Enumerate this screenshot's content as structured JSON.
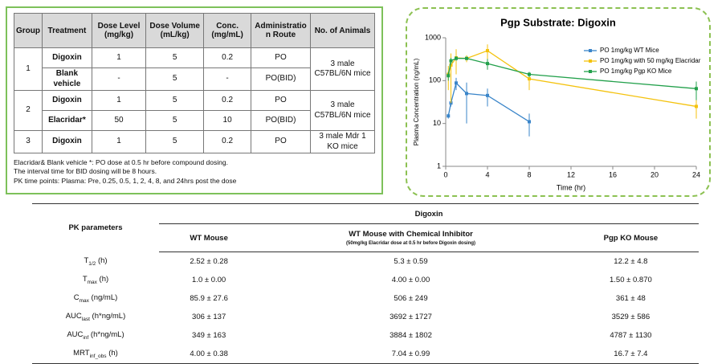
{
  "study_table": {
    "columns": [
      "Group",
      "Treatment",
      "Dose Level (mg/kg)",
      "Dose Volume (mL/kg)",
      "Conc. (mg/mL)",
      "Administration Route",
      "No. of Animals"
    ],
    "groups": [
      {
        "group": "1",
        "animals": "3 male C57BL/6N mice",
        "rows": [
          [
            "Digoxin",
            "1",
            "5",
            "0.2",
            "PO"
          ],
          [
            "Blank vehicle",
            "-",
            "5",
            "-",
            "PO(BID)"
          ]
        ]
      },
      {
        "group": "2",
        "animals": "3 male C57BL/6N mice",
        "rows": [
          [
            "Digoxin",
            "1",
            "5",
            "0.2",
            "PO"
          ],
          [
            "Elacridar*",
            "50",
            "5",
            "10",
            "PO(BID)"
          ]
        ]
      },
      {
        "group": "3",
        "animals": "3 male Mdr 1 KO mice",
        "rows": [
          [
            "Digoxin",
            "1",
            "5",
            "0.2",
            "PO"
          ]
        ]
      }
    ],
    "notes": [
      "Elacridar& Blank vehicle *: PO dose at 0.5 hr before compound dosing.",
      "The interval time for BID dosing will be 8 hours.",
      "PK time points: Plasma: Pre, 0.25, 0.5, 1, 2, 4, 8, and 24hrs post the dose"
    ]
  },
  "chart_data": {
    "type": "line",
    "title": "Pgp Substrate: Digoxin",
    "x_label": "Time (hr)",
    "y_label": "Plasma Concentration (ng/mL)",
    "log_y": true,
    "x": [
      0.25,
      0.5,
      1,
      2,
      4,
      8,
      24
    ],
    "xlim": [
      0,
      24
    ],
    "xticks": [
      0,
      4,
      8,
      12,
      16,
      20,
      24
    ],
    "ylim": [
      1,
      1000
    ],
    "yticks": [
      1,
      10,
      100,
      1000
    ],
    "legend": "upper right",
    "series": [
      {
        "name": "PO 1mg/kg WT Mice",
        "color": "#3a85c9",
        "values": [
          15,
          30,
          88,
          50,
          45,
          11,
          null
        ],
        "errors": [
          2,
          5,
          28,
          40,
          20,
          6,
          null
        ]
      },
      {
        "name": "PO 1mg/kg with 50 mg/kg Elacridar",
        "color": "#f4c20d",
        "values": [
          140,
          230,
          340,
          330,
          500,
          110,
          25
        ],
        "errors": [
          80,
          200,
          200,
          60,
          200,
          50,
          12
        ]
      },
      {
        "name": "PO 1mg/kg Pgp KO Mice",
        "color": "#22a04b",
        "values": [
          130,
          290,
          330,
          330,
          250,
          140,
          65
        ],
        "errors": [
          30,
          50,
          40,
          30,
          70,
          20,
          30
        ]
      }
    ]
  },
  "pk_table": {
    "row_header": "PK parameters",
    "group_header": "Digoxin",
    "columns": [
      {
        "title": "WT Mouse"
      },
      {
        "title": "WT Mouse with Chemical Inhibitor",
        "note": "(50mg/kg Elacridar dose at 0.5 hr before Digoxin dosing)"
      },
      {
        "title": "Pgp KO Mouse"
      }
    ],
    "rows": [
      {
        "base": "T",
        "sub": "1/2",
        "unit": "(h)",
        "values": [
          "2.52 ± 0.28",
          "5.3 ± 0.59",
          "12.2 ± 4.8"
        ]
      },
      {
        "base": "T",
        "sub": "max",
        "unit": "(h)",
        "values": [
          "1.0 ± 0.00",
          "4.00 ± 0.00",
          "1.50 ± 0.870"
        ]
      },
      {
        "base": "C",
        "sub": "max",
        "unit": "(ng/mL)",
        "values": [
          "85.9 ± 27.6",
          "506 ± 249",
          "361 ± 48"
        ]
      },
      {
        "base": "AUC",
        "sub": "last",
        "unit": "(h*ng/mL)",
        "values": [
          "306 ± 137",
          "3692 ± 1727",
          "3529 ± 586"
        ]
      },
      {
        "base": "AUC",
        "sub": "inf",
        "unit": "(h*ng/mL)",
        "values": [
          "349 ± 163",
          "3884 ± 1802",
          "4787 ± 1130"
        ]
      },
      {
        "base": "MRT",
        "sub": "inf_obs",
        "unit": "(h)",
        "values": [
          "4.00 ± 0.38",
          "7.04 ± 0.99",
          "16.7 ± 7.4"
        ]
      }
    ]
  }
}
